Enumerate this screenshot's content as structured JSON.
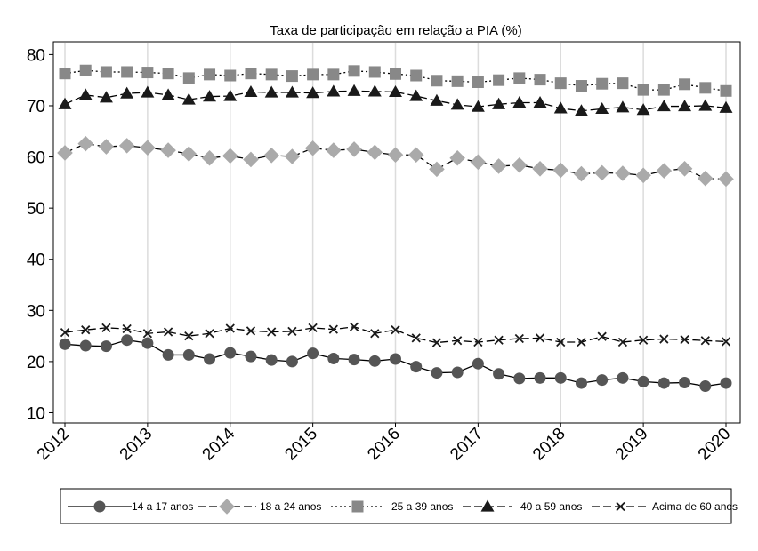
{
  "chart_data": {
    "type": "line",
    "title": "Taxa de participação em relação a PIA (%)",
    "xlabel": "",
    "ylabel": "",
    "x": [
      2012.0,
      2012.25,
      2012.5,
      2012.75,
      2013.0,
      2013.25,
      2013.5,
      2013.75,
      2014.0,
      2014.25,
      2014.5,
      2014.75,
      2015.0,
      2015.25,
      2015.5,
      2015.75,
      2016.0,
      2016.25,
      2016.5,
      2016.75,
      2017.0,
      2017.25,
      2017.5,
      2017.75,
      2018.0,
      2018.25,
      2018.5,
      2018.75,
      2019.0,
      2019.25,
      2019.5,
      2019.75,
      2020.0
    ],
    "xticks": [
      "2012",
      "2013",
      "2014",
      "2015",
      "2016",
      "2017",
      "2018",
      "2019",
      "2020"
    ],
    "xlim": [
      2012,
      2020
    ],
    "yticks": [
      10,
      20,
      30,
      40,
      50,
      60,
      70,
      80
    ],
    "ylim": [
      8,
      82.5
    ],
    "grid": "vertical",
    "legend": "bottom",
    "series": [
      {
        "name": "14 a 17 anos",
        "marker": "circle",
        "dash": "solid",
        "color": "#555555",
        "values": [
          23.4,
          23.1,
          23.0,
          24.2,
          23.6,
          21.3,
          21.3,
          20.5,
          21.7,
          21.0,
          20.3,
          20.0,
          21.6,
          20.6,
          20.4,
          20.1,
          20.5,
          19.0,
          17.8,
          17.9,
          19.6,
          17.6,
          16.7,
          16.8,
          16.8,
          15.8,
          16.4,
          16.8,
          16.1,
          15.8,
          15.9,
          15.2,
          15.8
        ]
      },
      {
        "name": "18 a 24 anos",
        "marker": "diamond",
        "dash": "longdash",
        "color": "#aaaaaa",
        "values": [
          60.8,
          62.6,
          62.0,
          62.2,
          61.8,
          61.3,
          60.6,
          59.8,
          60.2,
          59.5,
          60.3,
          60.1,
          61.7,
          61.3,
          61.5,
          60.9,
          60.4,
          60.4,
          57.6,
          59.8,
          59.0,
          58.2,
          58.4,
          57.7,
          57.4,
          56.7,
          56.9,
          56.8,
          56.4,
          57.3,
          57.7,
          55.8,
          55.7
        ]
      },
      {
        "name": "25 a 39 anos",
        "marker": "square",
        "dash": "dotted",
        "color": "#888888",
        "values": [
          76.3,
          76.9,
          76.6,
          76.6,
          76.5,
          76.3,
          75.4,
          76.1,
          75.9,
          76.3,
          76.1,
          75.8,
          76.1,
          76.1,
          76.8,
          76.6,
          76.2,
          75.9,
          74.9,
          74.8,
          74.6,
          75.0,
          75.4,
          75.1,
          74.4,
          73.9,
          74.3,
          74.4,
          73.1,
          73.1,
          74.2,
          73.5,
          72.9
        ]
      },
      {
        "name": "40 a 59 anos",
        "marker": "triangle",
        "dash": "longdash",
        "color": "#1a1a1a",
        "values": [
          70.3,
          72.1,
          71.6,
          72.4,
          72.6,
          72.1,
          71.2,
          71.8,
          71.9,
          72.7,
          72.6,
          72.6,
          72.5,
          72.8,
          72.9,
          72.8,
          72.7,
          71.9,
          71.0,
          70.2,
          69.8,
          70.3,
          70.6,
          70.6,
          69.5,
          69.0,
          69.4,
          69.7,
          69.2,
          69.9,
          69.9,
          70.0,
          69.6
        ]
      },
      {
        "name": "Acima de 60 anos",
        "marker": "x",
        "dash": "longdash",
        "color": "#1a1a1a",
        "values": [
          25.7,
          26.2,
          26.6,
          26.4,
          25.5,
          25.8,
          25.0,
          25.5,
          26.5,
          26.0,
          25.8,
          25.9,
          26.6,
          26.3,
          26.8,
          25.5,
          26.2,
          24.6,
          23.7,
          24.1,
          23.8,
          24.2,
          24.5,
          24.6,
          23.8,
          23.8,
          24.9,
          23.8,
          24.2,
          24.4,
          24.3,
          24.1,
          23.9
        ]
      }
    ]
  }
}
